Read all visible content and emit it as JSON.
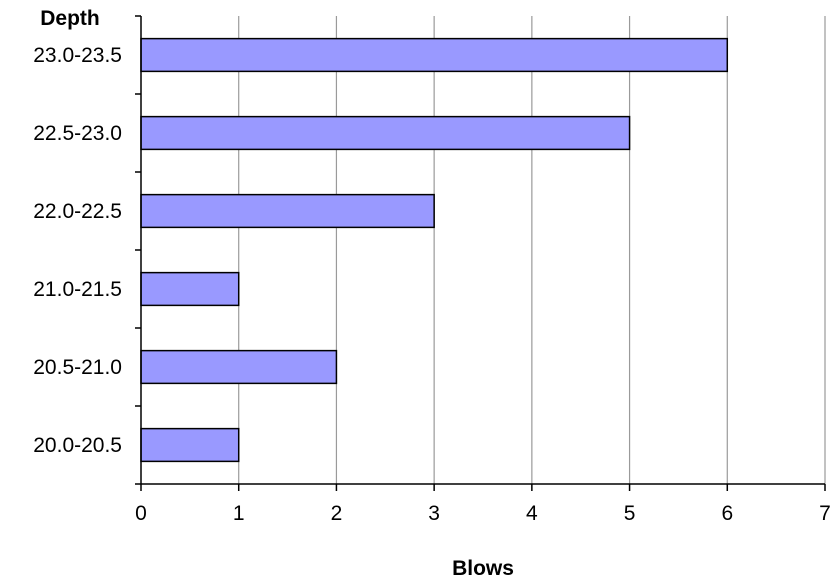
{
  "chart_data": {
    "type": "bar",
    "orientation": "horizontal",
    "categories": [
      "23.0-23.5",
      "22.5-23.0",
      "22.0-22.5",
      "21.0-21.5",
      "20.5-21.0",
      "20.0-20.5"
    ],
    "values": [
      6,
      5,
      3,
      1,
      2,
      1
    ],
    "xlabel": "Blows",
    "ylabel": "Depth",
    "xlim": [
      0,
      7
    ],
    "xticks": [
      "0",
      "1",
      "2",
      "3",
      "4",
      "5",
      "6",
      "7"
    ],
    "grid": true,
    "legend": "none",
    "bar_color": "#9999ff",
    "bar_edge_color": "#000000"
  }
}
